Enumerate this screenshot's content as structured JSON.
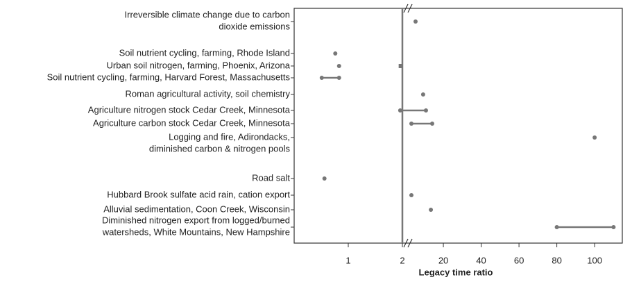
{
  "chart_data": {
    "type": "range-dot",
    "x_label": "Legacy time ratio",
    "color": "#777777",
    "rows": [
      {
        "label": [
          "Irreversible climate change due to carbon",
          "dioxide emissions"
        ],
        "values": [
          5.3
        ]
      },
      {
        "label": [
          "Soil nutrient cycling, farming, Rhode Island"
        ],
        "values": [
          0.76
        ]
      },
      {
        "label": [
          "Urban soil nitrogen, farming, Phoenix, Arizona"
        ],
        "values": [
          0.83
        ],
        "square": [
          1.97
        ]
      },
      {
        "label": [
          "Soil nutrient cycling, farming, Harvard Forest, Massachusetts"
        ],
        "values": [
          0.51,
          0.83
        ]
      },
      {
        "label": [
          "Roman agricultural activity, soil chemistry"
        ],
        "values": [
          9.3
        ]
      },
      {
        "label": [
          "Agriculture nitrogen stock Cedar Creek, Minnesota"
        ],
        "values": [
          1.96,
          10.8
        ]
      },
      {
        "label": [
          "Agriculture carbon stock Cedar Creek, Minnesota"
        ],
        "values": [
          3.1,
          14.1
        ]
      },
      {
        "label": [
          "Logging and fire, Adirondacks,",
          "diminished carbon & nitrogen pools"
        ],
        "values": [
          100
        ]
      },
      {
        "label": [
          "Road salt"
        ],
        "values": [
          0.56
        ]
      },
      {
        "label": [
          "Hubbard Brook sulfate acid rain, cation export"
        ],
        "values": [
          3.1
        ]
      },
      {
        "label": [
          "Alluvial sedimentation, Coon Creek, Wisconsin"
        ],
        "values": [
          13.4
        ]
      },
      {
        "label": [
          "Diminished nitrogen export from logged/burned",
          "watersheds, White Mountains, New Hampshire"
        ],
        "values": [
          80,
          110
        ]
      }
    ],
    "xlim": [
      0,
      2
    ],
    "xticks": [
      1,
      2
    ],
    "x2lim": [
      2,
      115
    ],
    "x2ticks": [
      20,
      40,
      60,
      80,
      100
    ]
  }
}
